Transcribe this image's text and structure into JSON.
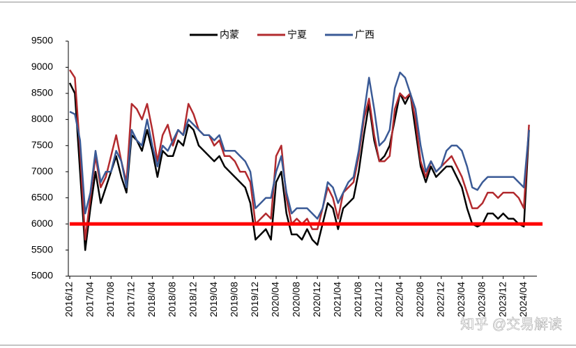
{
  "chart_data": {
    "type": "line",
    "categories": [
      "2016/12",
      null,
      null,
      null,
      "2017/04",
      null,
      null,
      null,
      "2017/08",
      null,
      null,
      null,
      "2017/12",
      null,
      null,
      null,
      "2018/04",
      null,
      null,
      null,
      "2018/08",
      null,
      null,
      null,
      "2018/12",
      null,
      null,
      null,
      "2019/04",
      null,
      null,
      null,
      "2019/08",
      null,
      null,
      null,
      "2019/12",
      null,
      null,
      null,
      "2020/04",
      null,
      null,
      null,
      "2020/08",
      null,
      null,
      null,
      "2020/12",
      null,
      null,
      null,
      "2021/04",
      null,
      null,
      null,
      "2021/08",
      null,
      null,
      null,
      "2021/12",
      null,
      null,
      null,
      "2022/04",
      null,
      null,
      null,
      "2022/08",
      null,
      null,
      null,
      "2022/12",
      null,
      null,
      null,
      "2023/04",
      null,
      null,
      null,
      "2023/08",
      null,
      null,
      null,
      "2023/12",
      null,
      null,
      null,
      "2024/04",
      null
    ],
    "series": [
      {
        "name": "内蒙",
        "color": "#000000",
        "values": [
          8700,
          8500,
          7000,
          5500,
          6300,
          7000,
          6400,
          6700,
          7000,
          7300,
          6900,
          6600,
          7700,
          7600,
          7400,
          7800,
          7400,
          6900,
          7400,
          7300,
          7300,
          7600,
          7500,
          7900,
          7800,
          7500,
          7400,
          7300,
          7200,
          7300,
          7100,
          7000,
          6900,
          6800,
          6700,
          6400,
          5700,
          5800,
          5900,
          5700,
          6800,
          7000,
          6200,
          5800,
          5800,
          5700,
          5900,
          5700,
          5600,
          6000,
          6400,
          6300,
          5900,
          6300,
          6400,
          6500,
          7000,
          7700,
          8300,
          7600,
          7200,
          7300,
          7500,
          8000,
          8500,
          8300,
          8500,
          7800,
          7100,
          6800,
          7100,
          6900,
          7000,
          7100,
          7100,
          6900,
          6700,
          6300,
          6000,
          5950,
          6000,
          6200,
          6200,
          6100,
          6200,
          6100,
          6100,
          6000,
          5950,
          7800
        ]
      },
      {
        "name": "宁夏",
        "color": "#b22a2e",
        "values": [
          8950,
          8800,
          7400,
          5700,
          6500,
          7300,
          6700,
          6900,
          7300,
          7700,
          7200,
          6800,
          8300,
          8200,
          8000,
          8300,
          7800,
          7200,
          7700,
          7900,
          7500,
          7800,
          7700,
          8300,
          8100,
          7800,
          7700,
          7700,
          7500,
          7600,
          7300,
          7300,
          7200,
          7000,
          7000,
          6800,
          6000,
          6100,
          6200,
          6100,
          7300,
          7500,
          6500,
          6000,
          6100,
          6000,
          6100,
          5900,
          5900,
          6300,
          6700,
          6500,
          6100,
          6600,
          6700,
          6800,
          7300,
          8000,
          8400,
          7700,
          7200,
          7200,
          7300,
          8200,
          8500,
          8400,
          8500,
          8000,
          7200,
          6900,
          7200,
          7000,
          7100,
          7200,
          7300,
          7100,
          6900,
          6600,
          6300,
          6300,
          6400,
          6600,
          6600,
          6500,
          6600,
          6600,
          6600,
          6500,
          6300,
          7900
        ]
      },
      {
        "name": "广西",
        "color": "#3a5a96",
        "values": [
          8150,
          8100,
          7600,
          6200,
          6600,
          7400,
          6800,
          7000,
          7000,
          7400,
          7200,
          6700,
          7800,
          7600,
          7500,
          8000,
          7500,
          7100,
          7500,
          7400,
          7600,
          7800,
          7700,
          8000,
          7900,
          7800,
          7700,
          7700,
          7600,
          7700,
          7400,
          7400,
          7400,
          7300,
          7200,
          7000,
          6300,
          6400,
          6500,
          6500,
          7000,
          7300,
          6600,
          6200,
          6300,
          6300,
          6300,
          6200,
          6100,
          6300,
          6800,
          6700,
          6400,
          6600,
          6800,
          6900,
          7400,
          8100,
          8800,
          8200,
          7500,
          7600,
          7800,
          8600,
          8900,
          8800,
          8500,
          8200,
          7500,
          7000,
          7200,
          7000,
          7100,
          7400,
          7500,
          7500,
          7400,
          7100,
          6700,
          6650,
          6800,
          6900,
          6900,
          6900,
          6900,
          6900,
          6900,
          6800,
          6700,
          7800
        ]
      }
    ],
    "ylim": [
      5000,
      9500
    ],
    "yticks": [
      5000,
      5500,
      6000,
      6500,
      7000,
      7500,
      8000,
      8500,
      9000,
      9500
    ],
    "legend": "top",
    "reference_line": {
      "value": 6000,
      "color": "#ff0000"
    },
    "watermark": "知乎 @交易解读"
  }
}
